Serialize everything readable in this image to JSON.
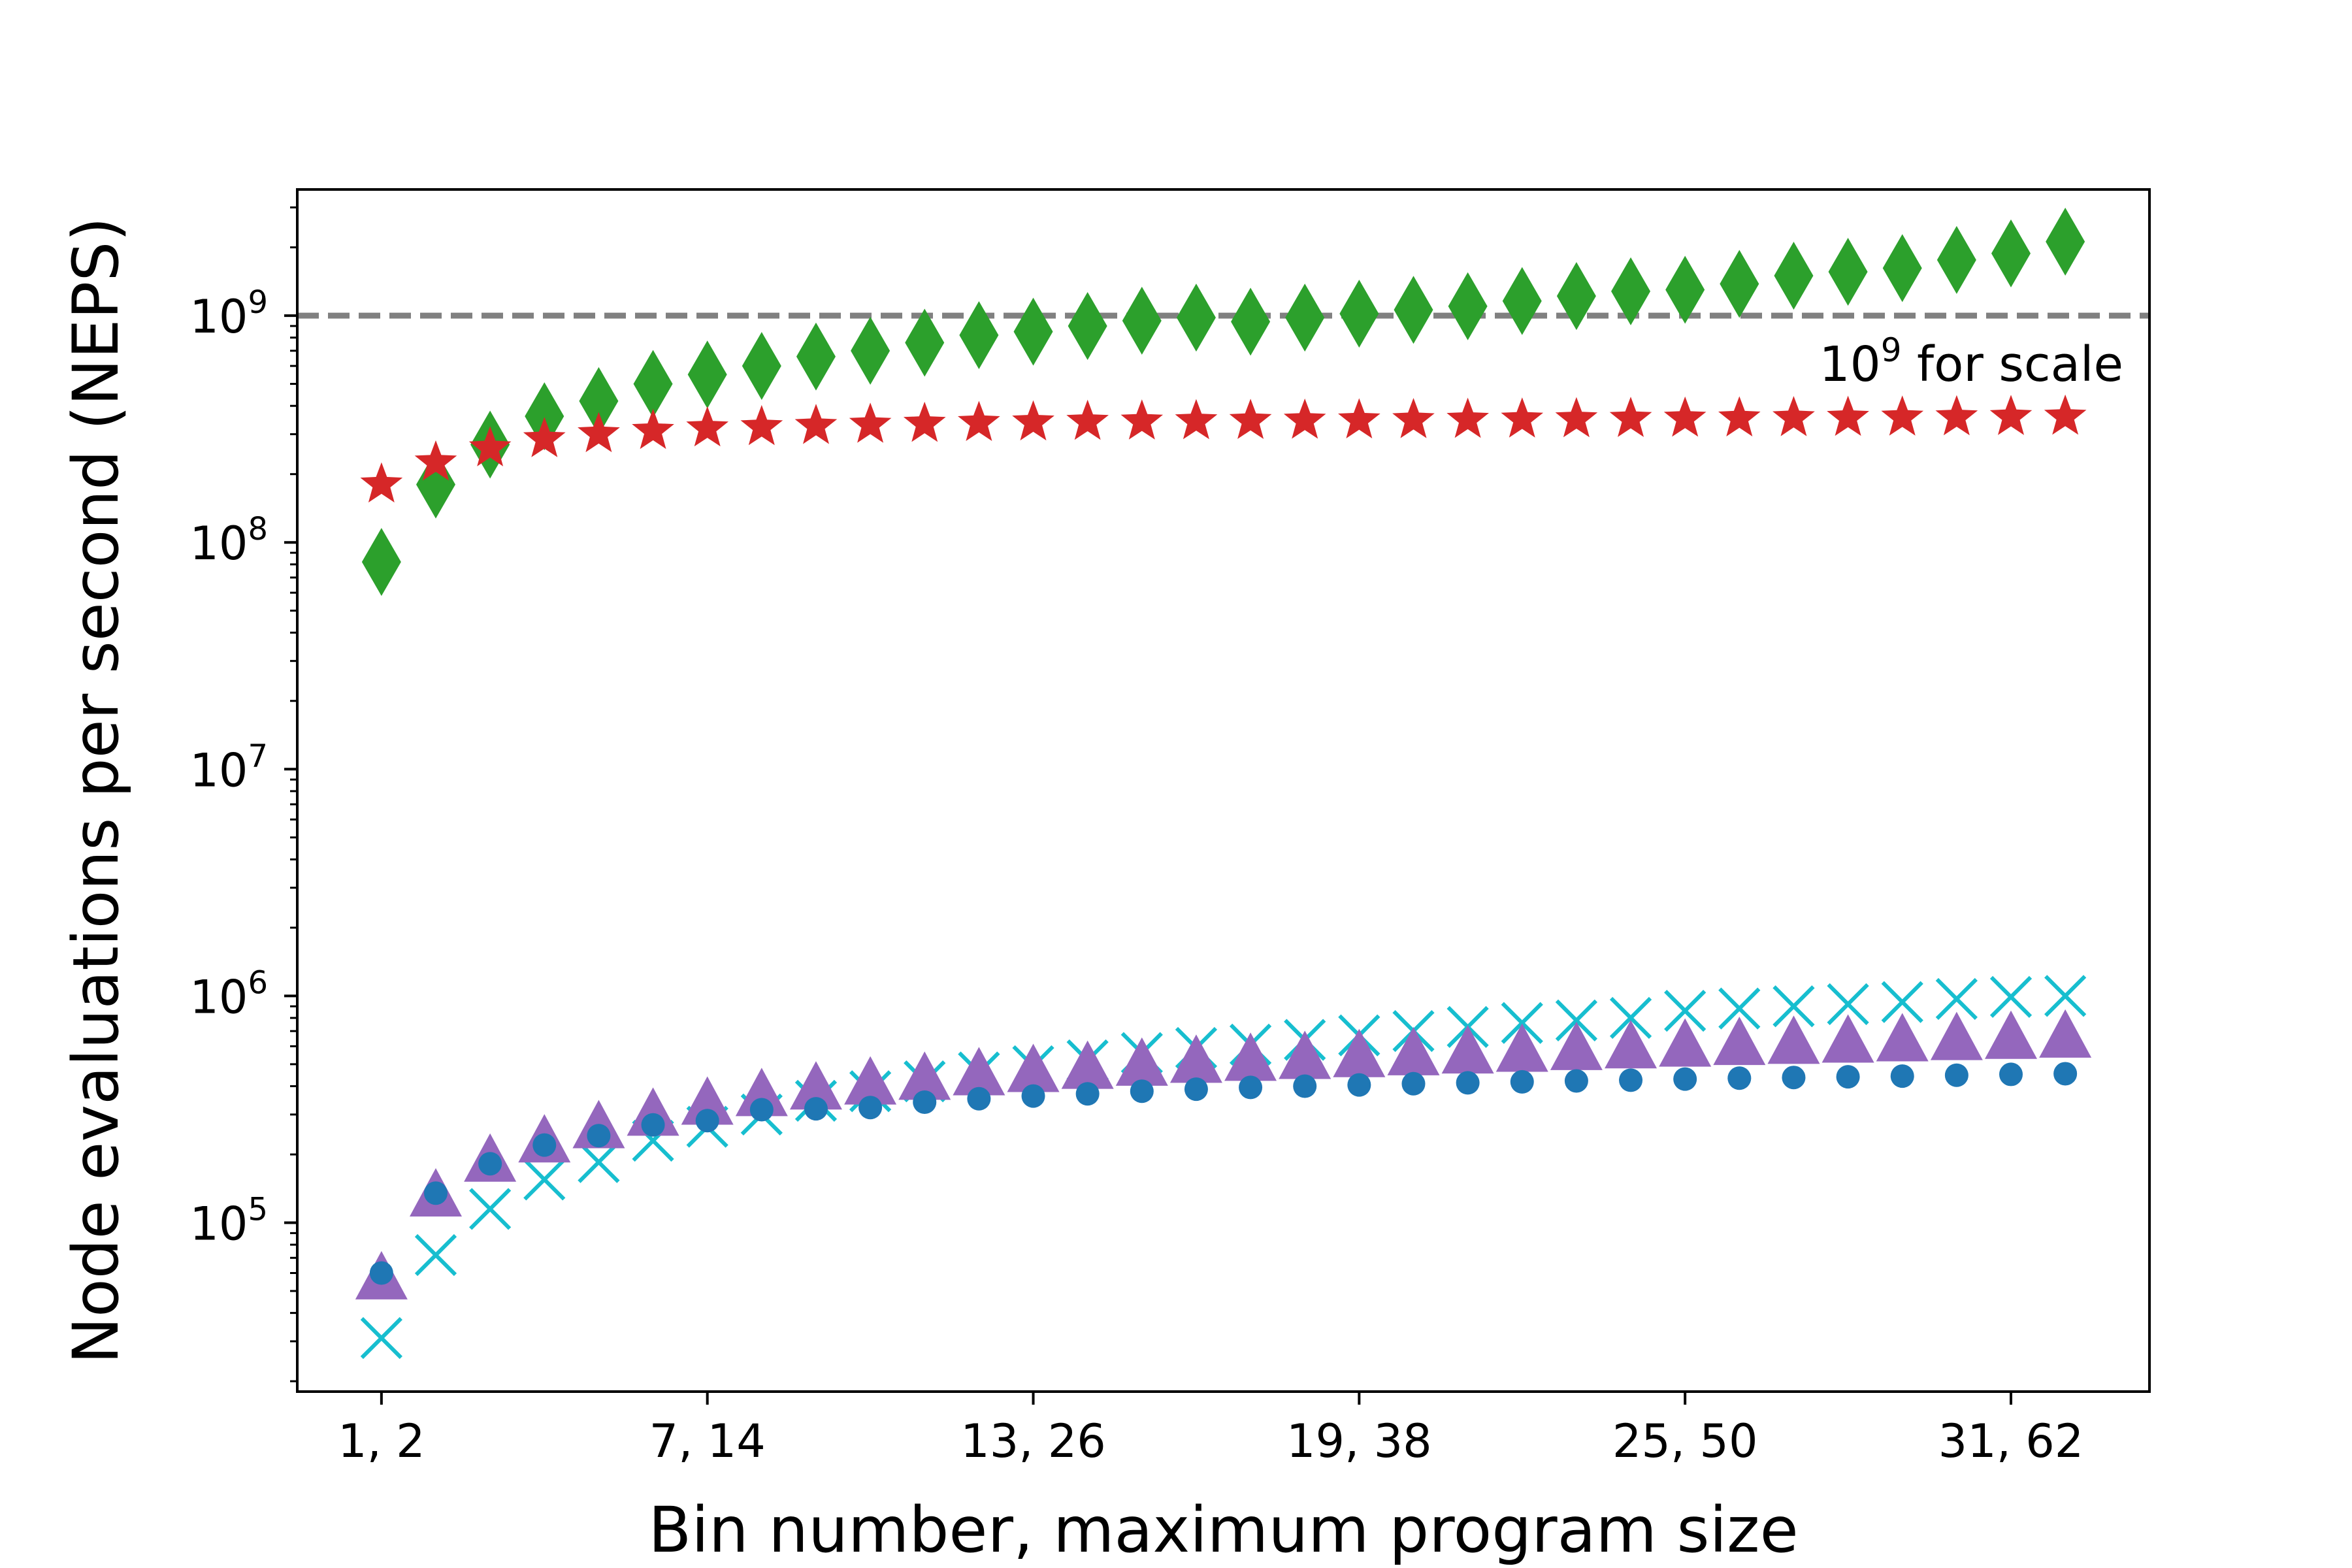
{
  "chart_data": {
    "type": "scatter",
    "xlabel": "Bin number, maximum program size",
    "ylabel": "Node evaluations per second (NEPS)",
    "x": [
      1,
      2,
      3,
      4,
      5,
      6,
      7,
      8,
      9,
      10,
      11,
      12,
      13,
      14,
      15,
      16,
      17,
      18,
      19,
      20,
      21,
      22,
      23,
      24,
      25,
      26,
      27,
      28,
      29,
      30,
      31,
      32
    ],
    "xlim": [
      -0.55,
      33.55
    ],
    "x_ticks": [
      {
        "value": 1,
        "label": "1, 2"
      },
      {
        "value": 7,
        "label": "7, 14"
      },
      {
        "value": 13,
        "label": "13, 26"
      },
      {
        "value": 19,
        "label": "19, 38"
      },
      {
        "value": 25,
        "label": "25, 50"
      },
      {
        "value": 31,
        "label": "31, 62"
      }
    ],
    "y_scale": "log",
    "ylim": [
      18000,
      3600000000
    ],
    "y_ticks": [
      {
        "value": 100000,
        "base": "10",
        "exp": "5"
      },
      {
        "value": 1000000,
        "base": "10",
        "exp": "6"
      },
      {
        "value": 10000000,
        "base": "10",
        "exp": "7"
      },
      {
        "value": 100000000,
        "base": "10",
        "exp": "8"
      },
      {
        "value": 1000000000,
        "base": "10",
        "exp": "9"
      }
    ],
    "reference_line": {
      "value": 1000000000,
      "color": "#808080",
      "style": "dashed",
      "label_base": "10",
      "label_exp": "9",
      "label_text": " for scale"
    },
    "grid": false,
    "legend": "none",
    "series": [
      {
        "marker": "diamond",
        "color": "#2ca02c",
        "values": [
          82000000,
          180000000,
          270000000,
          360000000,
          420000000,
          500000000,
          550000000,
          600000000,
          660000000,
          700000000,
          760000000,
          820000000,
          850000000,
          900000000,
          950000000,
          980000000,
          940000000,
          980000000,
          1020000000,
          1060000000,
          1100000000,
          1160000000,
          1220000000,
          1280000000,
          1300000000,
          1380000000,
          1500000000,
          1560000000,
          1620000000,
          1760000000,
          1880000000,
          2120000000
        ]
      },
      {
        "marker": "star",
        "color": "#d62728",
        "values": [
          180000000,
          225000000,
          260000000,
          285000000,
          300000000,
          310000000,
          318000000,
          322000000,
          326000000,
          330000000,
          333000000,
          336000000,
          338000000,
          340000000,
          341000000,
          342000000,
          343000000,
          344000000,
          345000000,
          346000000,
          347000000,
          348000000,
          349000000,
          350000000,
          351000000,
          352000000,
          353000000,
          354000000,
          355000000,
          356000000,
          357000000,
          358000000
        ]
      },
      {
        "marker": "x",
        "color": "#17becf",
        "values": [
          31000,
          72000,
          115000,
          155000,
          185000,
          230000,
          265000,
          300000,
          345000,
          380000,
          420000,
          460000,
          490000,
          520000,
          560000,
          590000,
          610000,
          640000,
          670000,
          700000,
          730000,
          760000,
          780000,
          800000,
          860000,
          880000,
          900000,
          920000,
          940000,
          970000,
          990000,
          1000000
        ]
      },
      {
        "marker": "triangle",
        "color": "#9467bd",
        "values": [
          56000,
          130000,
          185000,
          225000,
          260000,
          295000,
          330000,
          360000,
          385000,
          405000,
          425000,
          445000,
          460000,
          475000,
          490000,
          505000,
          515000,
          525000,
          535000,
          545000,
          555000,
          565000,
          575000,
          585000,
          595000,
          605000,
          612000,
          620000,
          628000,
          636000,
          644000,
          652000
        ]
      },
      {
        "marker": "circle",
        "color": "#1f77b4",
        "values": [
          60000,
          135000,
          182000,
          220000,
          242000,
          270000,
          282000,
          315000,
          318000,
          322000,
          340000,
          352000,
          362000,
          370000,
          380000,
          388000,
          395000,
          400000,
          405000,
          410000,
          414000,
          418000,
          422000,
          425000,
          430000,
          434000,
          437000,
          440000,
          443000,
          447000,
          451000,
          454000
        ]
      }
    ]
  }
}
